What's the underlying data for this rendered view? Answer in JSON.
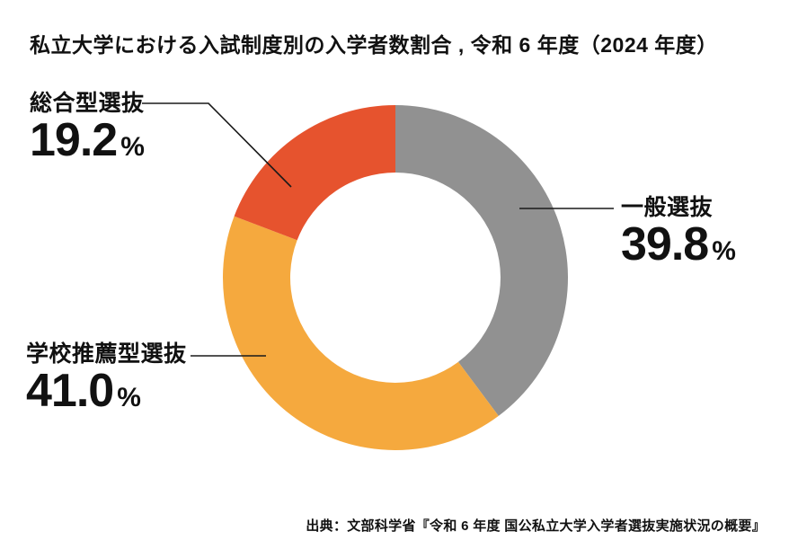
{
  "title": "私立大学における入試制度別の入学者数割合 , 令和 6 年度（2024 年度）",
  "source": "出典：文部科学省『令和 6 年度 国公私立大学入学者選抜実施状況の概要』",
  "chart_data": {
    "type": "pie",
    "subtype": "donut",
    "title": "私立大学における入試制度別の入学者数割合 , 令和 6 年度（2024 年度）",
    "unit": "%",
    "start_angle_deg": 0,
    "direction": "clockwise",
    "inner_radius_ratio": 0.61,
    "background": "#ffffff",
    "text_color": "#111111",
    "leader_line_color": "#1a1a1a",
    "segments": [
      {
        "label": "一般選抜",
        "value": 39.8,
        "display_value": "39.8",
        "color": "#919191",
        "label_side": "right"
      },
      {
        "label": "学校推薦型選抜",
        "value": 41.0,
        "display_value": "41.0",
        "color": "#F5A93E",
        "label_side": "left"
      },
      {
        "label": "総合型選抜",
        "value": 19.2,
        "display_value": "19.2",
        "color": "#E6532E",
        "label_side": "top-left"
      }
    ]
  }
}
